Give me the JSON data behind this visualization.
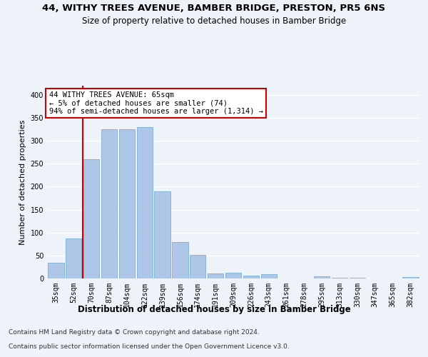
{
  "title_line1": "44, WITHY TREES AVENUE, BAMBER BRIDGE, PRESTON, PR5 6NS",
  "title_line2": "Size of property relative to detached houses in Bamber Bridge",
  "xlabel": "Distribution of detached houses by size in Bamber Bridge",
  "ylabel": "Number of detached properties",
  "footer_line1": "Contains HM Land Registry data © Crown copyright and database right 2024.",
  "footer_line2": "Contains public sector information licensed under the Open Government Licence v3.0.",
  "categories": [
    "35sqm",
    "52sqm",
    "70sqm",
    "87sqm",
    "104sqm",
    "122sqm",
    "139sqm",
    "156sqm",
    "174sqm",
    "191sqm",
    "209sqm",
    "226sqm",
    "243sqm",
    "261sqm",
    "278sqm",
    "295sqm",
    "313sqm",
    "330sqm",
    "347sqm",
    "365sqm",
    "382sqm"
  ],
  "values": [
    35,
    87,
    260,
    325,
    325,
    330,
    190,
    80,
    52,
    11,
    12,
    7,
    9,
    0,
    0,
    4,
    1,
    1,
    0,
    0,
    3
  ],
  "bar_color": "#aec6e8",
  "bar_edge_color": "#7bafd4",
  "property_label": "44 WITHY TREES AVENUE: 65sqm",
  "annotation_line2": "← 5% of detached houses are smaller (74)",
  "annotation_line3": "94% of semi-detached houses are larger (1,314) →",
  "vline_x_index": 2,
  "vline_color": "#cc0000",
  "annotation_box_color": "#ffffff",
  "annotation_box_edge": "#cc0000",
  "ylim": [
    0,
    420
  ],
  "background_color": "#eef2f9",
  "grid_color": "#ffffff",
  "title_fontsize": 9.5,
  "subtitle_fontsize": 8.5,
  "tick_fontsize": 7,
  "ylabel_fontsize": 8,
  "xlabel_fontsize": 8.5,
  "footer_fontsize": 6.5,
  "annotation_fontsize": 7.5
}
